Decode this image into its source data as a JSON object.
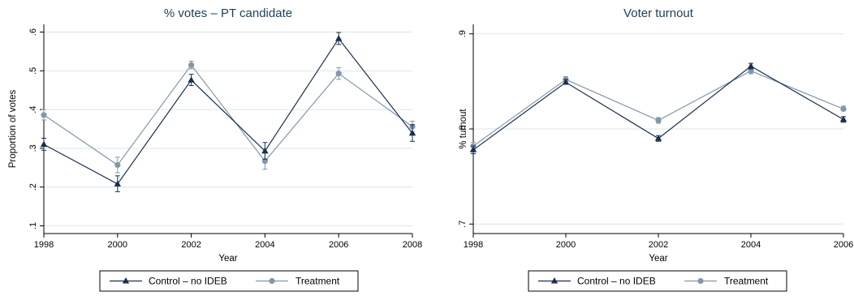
{
  "colors": {
    "control": "#1a2e4f",
    "treatment": "#8397a8",
    "grid": "#dce4ea",
    "axis": "#000000",
    "title": "#1f3f57"
  },
  "chart_data": [
    {
      "type": "line",
      "title": "% votes – PT candidate",
      "xlabel": "Year",
      "ylabel": "Proportion of votes",
      "x": [
        1998,
        2000,
        2002,
        2004,
        2006,
        2008
      ],
      "xticks": [
        "1998",
        "2000",
        "2002",
        "2004",
        "2006",
        "2008"
      ],
      "yticks": [
        ".1",
        ".2",
        ".3",
        ".4",
        ".5",
        ".6"
      ],
      "ylim": [
        0.08,
        0.62
      ],
      "grid": true,
      "legend": "bottom",
      "series": [
        {
          "name": "Control – no IDEB",
          "marker": "triangle",
          "values": [
            0.31,
            0.208,
            0.476,
            0.293,
            0.583,
            0.339
          ],
          "lower": [
            0.295,
            0.188,
            0.462,
            0.272,
            0.568,
            0.318
          ],
          "upper": [
            0.326,
            0.229,
            0.491,
            0.315,
            0.599,
            0.361
          ]
        },
        {
          "name": "Treatment",
          "marker": "circle",
          "values": [
            0.386,
            0.257,
            0.515,
            0.267,
            0.493,
            0.356
          ],
          "lower": [
            0.373,
            0.237,
            0.505,
            0.246,
            0.478,
            0.342
          ],
          "upper": [
            0.4,
            0.277,
            0.525,
            0.288,
            0.508,
            0.37
          ]
        }
      ]
    },
    {
      "type": "line",
      "title": "Voter turnout",
      "xlabel": "Year",
      "ylabel": "% turnout",
      "x": [
        1998,
        2000,
        2002,
        2004,
        2006
      ],
      "xticks": [
        "1998",
        "2000",
        "2002",
        "2004",
        "2006"
      ],
      "yticks": [
        ".7",
        ".8",
        ".9"
      ],
      "ylim": [
        0.69,
        0.91
      ],
      "grid": true,
      "legend": "bottom",
      "series": [
        {
          "name": "Control – no IDEB",
          "marker": "triangle",
          "values": [
            0.778,
            0.849,
            0.79,
            0.866,
            0.81
          ],
          "lower": [
            0.774,
            0.847,
            0.787,
            0.863,
            0.807
          ],
          "upper": [
            0.782,
            0.852,
            0.793,
            0.869,
            0.813
          ]
        },
        {
          "name": "Treatment",
          "marker": "circle",
          "values": [
            0.782,
            0.852,
            0.809,
            0.861,
            0.821
          ],
          "lower": [
            0.778,
            0.85,
            0.806,
            0.858,
            0.819
          ],
          "upper": [
            0.786,
            0.855,
            0.812,
            0.864,
            0.824
          ]
        }
      ]
    }
  ]
}
